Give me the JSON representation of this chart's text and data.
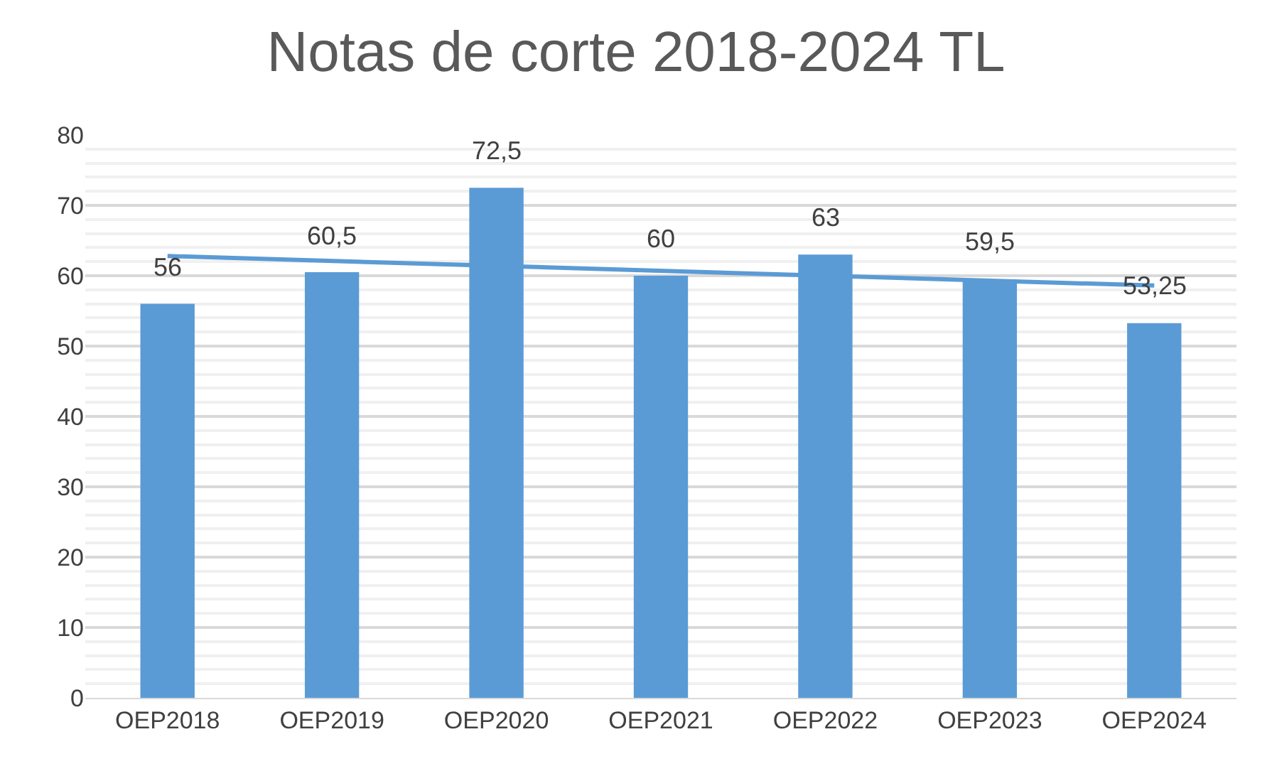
{
  "chart_data": {
    "type": "bar",
    "title": "Notas de corte 2018-2024 TL",
    "categories": [
      "OEP2018",
      "OEP2019",
      "OEP2020",
      "OEP2021",
      "OEP2022",
      "OEP2023",
      "OEP2024"
    ],
    "series": [
      {
        "color": "#5b9bd5",
        "values": [
          56,
          60.5,
          72.5,
          60,
          63,
          59.5,
          53.25
        ],
        "value_labels": [
          "56",
          "60,5",
          "72,5",
          "60",
          "63",
          "59,5",
          "53,25"
        ]
      },
      {
        "type": "line",
        "color": "#5b9bd5",
        "x": [
          "OEP2018",
          "OEP2024"
        ],
        "values": [
          62.8,
          58.6
        ]
      }
    ],
    "ylim": [
      0,
      80
    ],
    "yticks": [
      0,
      10,
      20,
      30,
      40,
      50,
      60,
      70,
      80
    ],
    "grid": "y"
  }
}
